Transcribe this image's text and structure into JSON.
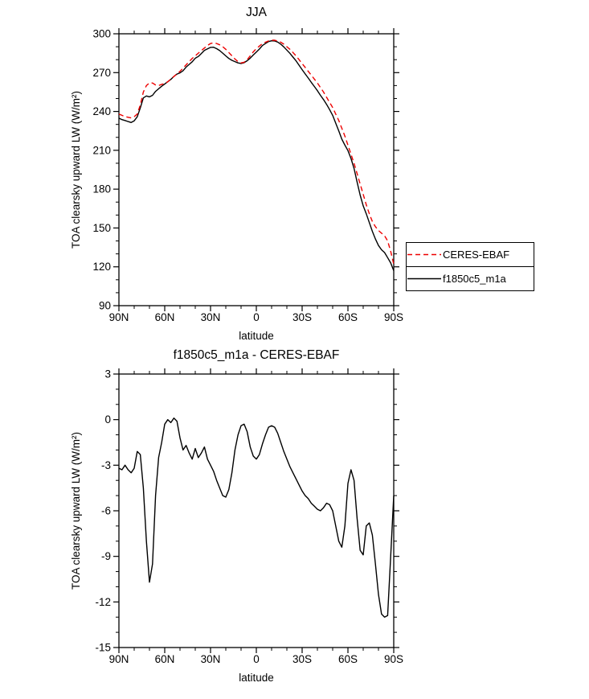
{
  "page": {
    "background": "#ffffff"
  },
  "chart_data": [
    {
      "id": "jja-chart",
      "type": "line",
      "title": "JJA",
      "xlabel": "latitude",
      "ylabel": "TOA clearsky upward LW (W/m²)",
      "ylim": [
        90,
        300
      ],
      "xlim": [
        90,
        -90
      ],
      "x_axis": {
        "tick_values": [
          90,
          60,
          30,
          0,
          -30,
          -60,
          -90
        ],
        "tick_labels": [
          "90N",
          "60N",
          "30N",
          "0",
          "30S",
          "60S",
          "90S"
        ],
        "minor_step": 10
      },
      "y_axis": {
        "tick_values": [
          90,
          120,
          150,
          180,
          210,
          240,
          270,
          300
        ],
        "tick_labels": [
          "90",
          "120",
          "150",
          "180",
          "210",
          "240",
          "270",
          "300"
        ],
        "minor_step": 10
      },
      "grid": false,
      "lats": [
        90,
        88,
        86,
        84,
        82,
        80,
        78,
        76,
        74,
        72,
        70,
        68,
        66,
        64,
        62,
        60,
        58,
        56,
        54,
        52,
        50,
        48,
        46,
        44,
        42,
        40,
        38,
        36,
        34,
        32,
        30,
        28,
        26,
        24,
        22,
        20,
        18,
        16,
        14,
        12,
        10,
        8,
        6,
        4,
        2,
        0,
        -2,
        -4,
        -6,
        -8,
        -10,
        -12,
        -14,
        -16,
        -18,
        -20,
        -22,
        -24,
        -26,
        -28,
        -30,
        -32,
        -34,
        -36,
        -38,
        -40,
        -42,
        -44,
        -46,
        -48,
        -50,
        -52,
        -54,
        -56,
        -58,
        -60,
        -62,
        -64,
        -66,
        -68,
        -70,
        -72,
        -74,
        -76,
        -78,
        -80,
        -82,
        -84,
        -86,
        -88,
        -90
      ],
      "series": [
        {
          "name": "CERES-EBAF",
          "color": "#ee0000",
          "dashed": true,
          "values": [
            238,
            237,
            236,
            235.5,
            235,
            236,
            238,
            245,
            255,
            260,
            262,
            262,
            260.5,
            260,
            261,
            261.5,
            263,
            265,
            267,
            269,
            271,
            273.5,
            276,
            278.5,
            281,
            283,
            285,
            287,
            289,
            291,
            292.5,
            293,
            292.5,
            291.5,
            290,
            288,
            285.5,
            283,
            280.5,
            278.5,
            277.5,
            278,
            280,
            283,
            286,
            288.5,
            290.5,
            292.5,
            293.5,
            294.5,
            295,
            295,
            294.5,
            293.5,
            292,
            290,
            288,
            285.5,
            283,
            280,
            277,
            274,
            271,
            268,
            265,
            262,
            258.5,
            255,
            251,
            247,
            243,
            238,
            233,
            227,
            221,
            214,
            207,
            200,
            192,
            184,
            176,
            168,
            161,
            155,
            151,
            148,
            146,
            144,
            140,
            132,
            122
          ]
        },
        {
          "name": "f1850c5_m1a",
          "color": "#000000",
          "dashed": false,
          "values": [
            234.8,
            233.7,
            233,
            232.2,
            231.5,
            232.8,
            235.9,
            242.7,
            250.5,
            252,
            251.3,
            252.5,
            255.5,
            257.5,
            259.5,
            261.2,
            263,
            264.8,
            267.1,
            268.9,
            269.8,
            271.5,
            274.3,
            276.3,
            278.4,
            281.1,
            282.5,
            284.8,
            287.2,
            288.4,
            289.5,
            289.6,
            288.5,
            287,
            285,
            282.9,
            280.9,
            279.5,
            278.5,
            277.5,
            277.1,
            277.7,
            279.2,
            281.2,
            283.6,
            285.9,
            288.2,
            290.9,
            292.5,
            294,
            294.6,
            294.5,
            293.6,
            292,
            289.9,
            287.4,
            284.9,
            282,
            279.1,
            275.7,
            272.3,
            269,
            265.8,
            262.5,
            259.3,
            256.1,
            252.5,
            249.2,
            245.5,
            241.4,
            237,
            231,
            225,
            218.6,
            214,
            209.8,
            203.7,
            196,
            185.5,
            175.4,
            167.1,
            161,
            154.2,
            147.4,
            141.5,
            136.5,
            133.2,
            131,
            127.1,
            123,
            117
          ]
        }
      ],
      "legend": {
        "position": "outside-right",
        "items": [
          {
            "label": "CERES-EBAF",
            "color": "#ee0000",
            "dashed": true
          },
          {
            "label": "f1850c5_m1a",
            "color": "#000000",
            "dashed": false
          }
        ]
      }
    },
    {
      "id": "difference-chart",
      "type": "line",
      "title": "f1850c5_m1a - CERES-EBAF",
      "xlabel": "latitude",
      "ylabel": "TOA clearsky upward LW (W/m²)",
      "ylim": [
        -15,
        3
      ],
      "xlim": [
        90,
        -90
      ],
      "x_axis": {
        "tick_values": [
          90,
          60,
          30,
          0,
          -30,
          -60,
          -90
        ],
        "tick_labels": [
          "90N",
          "60N",
          "30N",
          "0",
          "30S",
          "60S",
          "90S"
        ],
        "minor_step": 10
      },
      "y_axis": {
        "tick_values": [
          3,
          0,
          -3,
          -6,
          -9,
          -12,
          -15
        ],
        "tick_labels": [
          "3",
          "0",
          "-3",
          "-6",
          "-9",
          "-12",
          "-15"
        ],
        "minor_step": 1
      },
      "grid": false,
      "lats": [
        90,
        88,
        86,
        84,
        82,
        80,
        78,
        76,
        74,
        72,
        70,
        68,
        66,
        64,
        62,
        60,
        58,
        56,
        54,
        52,
        50,
        48,
        46,
        44,
        42,
        40,
        38,
        36,
        34,
        32,
        30,
        28,
        26,
        24,
        22,
        20,
        18,
        16,
        14,
        12,
        10,
        8,
        6,
        4,
        2,
        0,
        -2,
        -4,
        -6,
        -8,
        -10,
        -12,
        -14,
        -16,
        -18,
        -20,
        -22,
        -24,
        -26,
        -28,
        -30,
        -32,
        -34,
        -36,
        -38,
        -40,
        -42,
        -44,
        -46,
        -48,
        -50,
        -52,
        -54,
        -56,
        -58,
        -60,
        -62,
        -64,
        -66,
        -68,
        -70,
        -72,
        -74,
        -76,
        -78,
        -80,
        -82,
        -84,
        -86,
        -88,
        -90
      ],
      "series": [
        {
          "name": "f1850c5_m1a - CERES-EBAF",
          "color": "#000000",
          "dashed": false,
          "values": [
            -3.2,
            -3.3,
            -3,
            -3.3,
            -3.5,
            -3.2,
            -2.1,
            -2.3,
            -4.5,
            -8,
            -10.7,
            -9.5,
            -5,
            -2.5,
            -1.5,
            -0.3,
            0,
            -0.2,
            0.1,
            -0.1,
            -1.2,
            -2,
            -1.7,
            -2.2,
            -2.6,
            -1.9,
            -2.5,
            -2.2,
            -1.8,
            -2.6,
            -3,
            -3.4,
            -4,
            -4.5,
            -5,
            -5.1,
            -4.6,
            -3.5,
            -2,
            -1,
            -0.4,
            -0.3,
            -0.8,
            -1.8,
            -2.4,
            -2.6,
            -2.3,
            -1.6,
            -1,
            -0.5,
            -0.4,
            -0.5,
            -0.9,
            -1.5,
            -2.1,
            -2.6,
            -3.1,
            -3.5,
            -3.9,
            -4.3,
            -4.7,
            -5,
            -5.2,
            -5.5,
            -5.7,
            -5.9,
            -6,
            -5.8,
            -5.5,
            -5.6,
            -6,
            -7,
            -8,
            -8.4,
            -7,
            -4.2,
            -3.3,
            -4,
            -6.5,
            -8.6,
            -8.9,
            -7,
            -6.8,
            -7.6,
            -9.5,
            -11.5,
            -12.8,
            -13,
            -12.9,
            -9,
            -5
          ]
        }
      ]
    }
  ]
}
